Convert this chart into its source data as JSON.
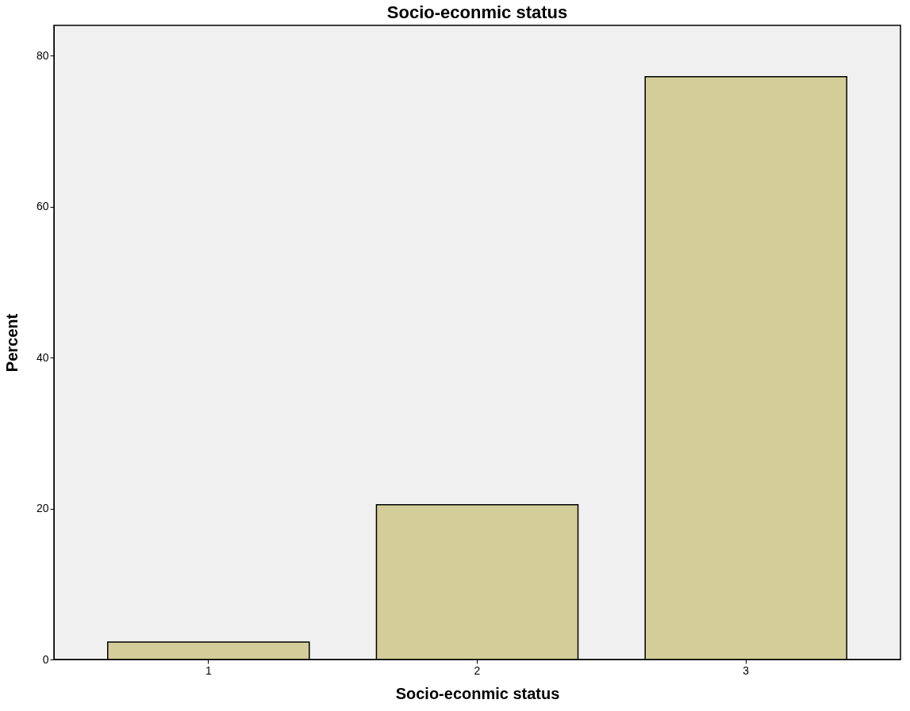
{
  "chart_data": {
    "type": "bar",
    "title": "Socio-econmic status",
    "xlabel": "Socio-econmic status",
    "ylabel": "Percent",
    "categories": [
      "1",
      "2",
      "3"
    ],
    "values": [
      2.3,
      20.5,
      77.2
    ],
    "color": "#d3ce98",
    "ylim": [
      0,
      84
    ],
    "yticks": [
      0,
      20,
      40,
      60,
      80
    ],
    "grid": false
  }
}
